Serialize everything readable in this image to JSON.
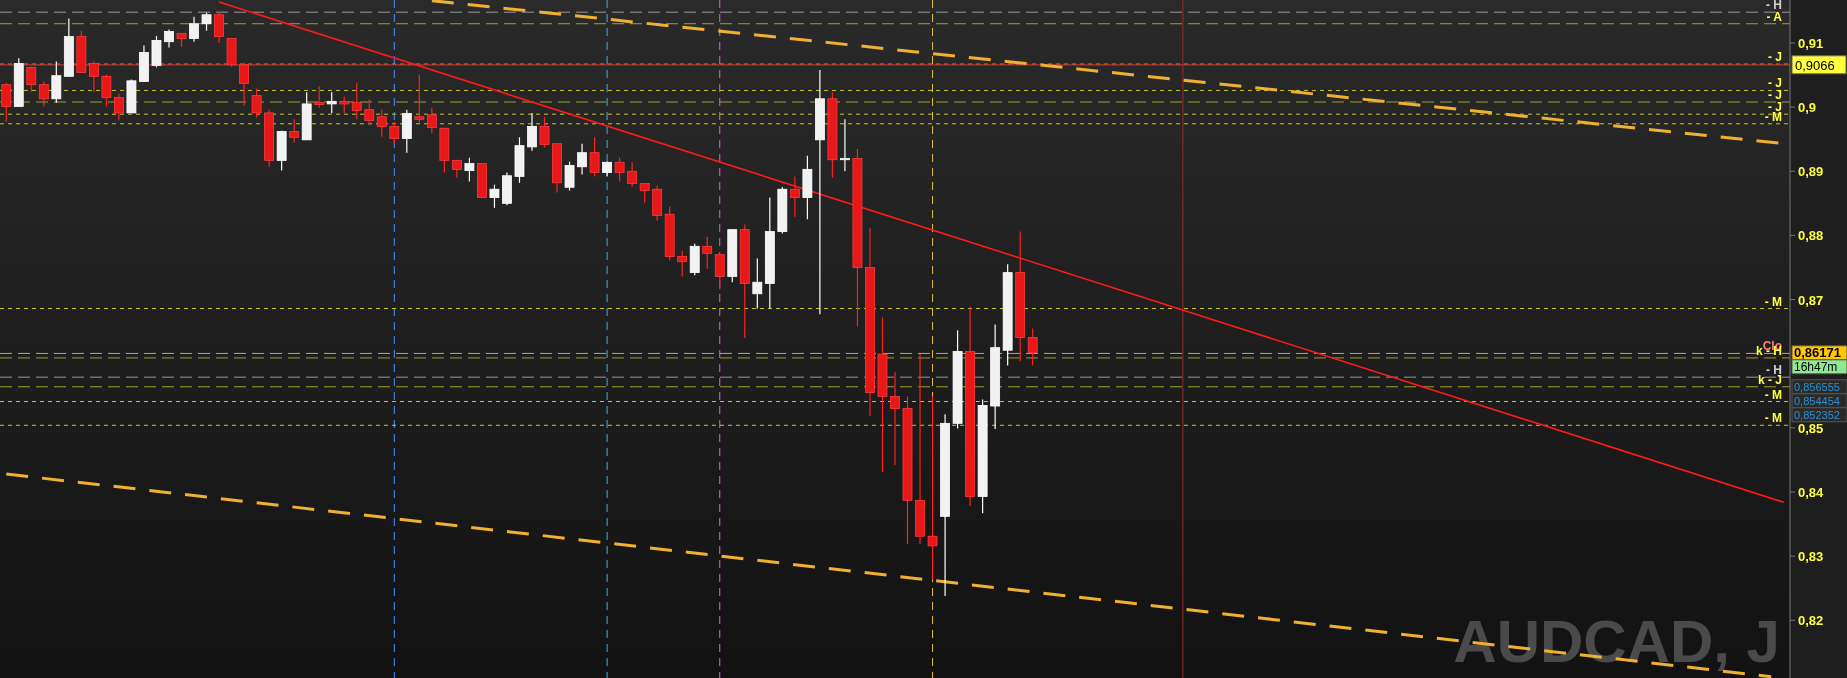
{
  "chart_data": {
    "type": "candlestick",
    "title": "AUDCAD, J",
    "categories": [
      null,
      null,
      null,
      null,
      null,
      null,
      null,
      null,
      null,
      null,
      null,
      null,
      null,
      null,
      null,
      null,
      null,
      null,
      null,
      null,
      null,
      null,
      null,
      null,
      null,
      null,
      null,
      null,
      null,
      null,
      null,
      null,
      null,
      null,
      null,
      null,
      null,
      null,
      null,
      null,
      null,
      null,
      null,
      null,
      null,
      null,
      null,
      null,
      null,
      null,
      null,
      null,
      null,
      null,
      null,
      null,
      null,
      null,
      null,
      null,
      null,
      null,
      null,
      null,
      null,
      null,
      null,
      null,
      null,
      null,
      null,
      null,
      null,
      null,
      null,
      null,
      null,
      null,
      null,
      null,
      null,
      null,
      null,
      null,
      null,
      null,
      null,
      null,
      null,
      null,
      null,
      null,
      null,
      null,
      null,
      null,
      null,
      null,
      null,
      null,
      null,
      null,
      null,
      null,
      null,
      null,
      null,
      null,
      null,
      null,
      null,
      null,
      null,
      null,
      null,
      null,
      null,
      null,
      null,
      null,
      null,
      null,
      null,
      null,
      null,
      null,
      null,
      null,
      null,
      null,
      null,
      null,
      null,
      null,
      null,
      null,
      null,
      null,
      null,
      null,
      null,
      null,
      null
    ],
    "ohlc": [
      [
        0.9035,
        0.9038,
        0.8977,
        0.9001
      ],
      [
        0.9001,
        0.9076,
        0.9001,
        0.9068
      ],
      [
        0.9062,
        0.9063,
        0.9024,
        0.9035
      ],
      [
        0.9035,
        0.904,
        0.9001,
        0.9013
      ],
      [
        0.9013,
        0.9071,
        0.9007,
        0.9049
      ],
      [
        0.9048,
        0.9138,
        0.9048,
        0.911
      ],
      [
        0.911,
        0.9119,
        0.9054,
        0.9054
      ],
      [
        0.9068,
        0.9071,
        0.9024,
        0.9048
      ],
      [
        0.9048,
        0.9051,
        0.9001,
        0.9015
      ],
      [
        0.9015,
        0.9021,
        0.8979,
        0.8991
      ],
      [
        0.8991,
        0.9043,
        0.8991,
        0.9041
      ],
      [
        0.904,
        0.9096,
        0.904,
        0.9085
      ],
      [
        0.9065,
        0.9111,
        0.9062,
        0.9104
      ],
      [
        0.9102,
        0.9121,
        0.9093,
        0.9118
      ],
      [
        0.9115,
        0.9115,
        0.9094,
        0.9107
      ],
      [
        0.9107,
        0.9141,
        0.9102,
        0.913
      ],
      [
        0.913,
        0.9147,
        0.9119,
        0.9144
      ],
      [
        0.9144,
        0.9149,
        0.91,
        0.911
      ],
      [
        0.9107,
        0.9107,
        0.9063,
        0.9066
      ],
      [
        0.9066,
        0.9069,
        0.9002,
        0.9037
      ],
      [
        0.9018,
        0.9029,
        0.8984,
        0.8991
      ],
      [
        0.8991,
        0.8996,
        0.8907,
        0.8917
      ],
      [
        0.8917,
        0.8963,
        0.8901,
        0.8962
      ],
      [
        0.8962,
        0.8981,
        0.8945,
        0.8953
      ],
      [
        0.8949,
        0.9023,
        0.8949,
        0.9005
      ],
      [
        0.9007,
        0.9032,
        0.8999,
        0.9004
      ],
      [
        0.9005,
        0.9023,
        0.8991,
        0.9009
      ],
      [
        0.9009,
        0.9016,
        0.8991,
        0.9005
      ],
      [
        0.9007,
        0.9038,
        0.8981,
        0.8995
      ],
      [
        0.8996,
        0.9012,
        0.8973,
        0.8979
      ],
      [
        0.8985,
        0.8996,
        0.8954,
        0.897
      ],
      [
        0.897,
        0.8977,
        0.8942,
        0.8951
      ],
      [
        0.8951,
        0.8996,
        0.8929,
        0.899
      ],
      [
        0.8985,
        0.9051,
        0.8976,
        0.8981
      ],
      [
        0.8988,
        0.8999,
        0.8959,
        0.8968
      ],
      [
        0.8967,
        0.8968,
        0.8898,
        0.8917
      ],
      [
        0.8917,
        0.8918,
        0.889,
        0.8903
      ],
      [
        0.8901,
        0.8921,
        0.8884,
        0.8912
      ],
      [
        0.8912,
        0.8912,
        0.8859,
        0.8859
      ],
      [
        0.8859,
        0.8879,
        0.8843,
        0.8872
      ],
      [
        0.885,
        0.8898,
        0.8847,
        0.8893
      ],
      [
        0.8892,
        0.8953,
        0.8882,
        0.894
      ],
      [
        0.8938,
        0.8991,
        0.8932,
        0.897
      ],
      [
        0.897,
        0.8985,
        0.8937,
        0.8942
      ],
      [
        0.8943,
        0.8943,
        0.8867,
        0.8882
      ],
      [
        0.8875,
        0.8915,
        0.887,
        0.8909
      ],
      [
        0.8907,
        0.8943,
        0.8895,
        0.8929
      ],
      [
        0.8929,
        0.8953,
        0.8892,
        0.8898
      ],
      [
        0.8898,
        0.8915,
        0.8892,
        0.8914
      ],
      [
        0.8914,
        0.8921,
        0.8884,
        0.8898
      ],
      [
        0.89,
        0.8914,
        0.8876,
        0.8881
      ],
      [
        0.8881,
        0.8881,
        0.8851,
        0.887
      ],
      [
        0.8872,
        0.8878,
        0.8823,
        0.8831
      ],
      [
        0.8833,
        0.8845,
        0.8761,
        0.8767
      ],
      [
        0.8767,
        0.8776,
        0.8736,
        0.8759
      ],
      [
        0.8742,
        0.8787,
        0.8738,
        0.8783
      ],
      [
        0.8783,
        0.8798,
        0.8748,
        0.8772
      ],
      [
        0.877,
        0.877,
        0.8716,
        0.8736
      ],
      [
        0.8736,
        0.8809,
        0.8727,
        0.8809
      ],
      [
        0.8809,
        0.8817,
        0.864,
        0.8725
      ],
      [
        0.8709,
        0.8764,
        0.8686,
        0.8727
      ],
      [
        0.8725,
        0.8859,
        0.8686,
        0.8806
      ],
      [
        0.8806,
        0.8875,
        0.8803,
        0.8872
      ],
      [
        0.8872,
        0.8892,
        0.8829,
        0.8859
      ],
      [
        0.8859,
        0.8924,
        0.8825,
        0.8903
      ],
      [
        0.8949,
        0.9058,
        0.8677,
        0.9013
      ],
      [
        0.9013,
        0.9023,
        0.889,
        0.8918
      ],
      [
        0.8918,
        0.8981,
        0.89,
        0.892
      ],
      [
        0.892,
        0.8935,
        0.8658,
        0.875
      ],
      [
        0.875,
        0.8811,
        0.8518,
        0.8555
      ],
      [
        0.8615,
        0.8672,
        0.8431,
        0.8549
      ],
      [
        0.8549,
        0.8587,
        0.8442,
        0.853
      ],
      [
        0.853,
        0.8549,
        0.8319,
        0.8387
      ],
      [
        0.8387,
        0.8615,
        0.8319,
        0.8331
      ],
      [
        0.8331,
        0.8549,
        0.8264,
        0.8316
      ],
      [
        0.8362,
        0.8521,
        0.8238,
        0.8507
      ],
      [
        0.8507,
        0.8652,
        0.8499,
        0.8619
      ],
      [
        0.8619,
        0.8689,
        0.8378,
        0.8393
      ],
      [
        0.8393,
        0.8544,
        0.8367,
        0.8535
      ],
      [
        0.8534,
        0.8661,
        0.8498,
        0.8625
      ],
      [
        0.8621,
        0.8755,
        0.8597,
        0.8742
      ],
      [
        0.8742,
        0.8806,
        0.8604,
        0.8641
      ],
      [
        0.8641,
        0.8655,
        0.8597,
        0.8617
      ],
      null,
      null,
      null,
      null,
      null,
      null,
      null,
      null,
      null,
      null,
      null,
      null,
      null,
      null,
      null,
      null,
      null,
      null,
      null,
      null,
      null,
      null,
      null,
      null,
      null,
      null,
      null,
      null,
      null,
      null,
      null,
      null,
      null,
      null,
      null,
      null,
      null,
      null,
      null,
      null,
      null,
      null,
      null,
      null,
      null,
      null,
      null,
      null,
      null,
      null,
      null,
      null,
      null,
      null,
      null,
      null,
      null,
      null,
      null,
      null
    ],
    "ylim": [
      0.811,
      0.9167
    ],
    "yticks": [
      {
        "value": 0.82,
        "label": "0,82"
      },
      {
        "value": 0.83,
        "label": "0,83"
      },
      {
        "value": 0.84,
        "label": "0,84"
      },
      {
        "value": 0.85,
        "label": "0,85"
      },
      {
        "value": 0.87,
        "label": "0,87"
      },
      {
        "value": 0.88,
        "label": "0,88"
      },
      {
        "value": 0.89,
        "label": "0,89"
      },
      {
        "value": 0.9,
        "label": "0,9"
      },
      {
        "value": 0.91,
        "label": "0,91"
      }
    ],
    "series": [
      {
        "type": "line",
        "values": [
          null,
          null,
          null,
          null,
          null,
          null,
          null,
          null,
          null,
          null,
          null,
          null,
          null,
          null,
          null,
          null,
          null,
          0.9164,
          null,
          null,
          null,
          null,
          null,
          null,
          null,
          null,
          null,
          null,
          null,
          null,
          null,
          null,
          null,
          null,
          null,
          null,
          null,
          null,
          null,
          null,
          null,
          null,
          null,
          null,
          null,
          null,
          null,
          null,
          null,
          null,
          null,
          null,
          null,
          null,
          null,
          null,
          null,
          null,
          null,
          null,
          null,
          null,
          null,
          null,
          null,
          null,
          null,
          null,
          null,
          null,
          null,
          null,
          null,
          null,
          null,
          null,
          null,
          null,
          null,
          null,
          null,
          null,
          null,
          null,
          null,
          null,
          null,
          null,
          null,
          null,
          null,
          null,
          null,
          null,
          null,
          null,
          null,
          null,
          null,
          null,
          null,
          null,
          null,
          null,
          null,
          null,
          null,
          null,
          null,
          null,
          null,
          null,
          null,
          null,
          null,
          null,
          null,
          null,
          null,
          null,
          null,
          null,
          null,
          null,
          null,
          null,
          null,
          null,
          null,
          null,
          null,
          null,
          null,
          null,
          null,
          null,
          null,
          null,
          null,
          null,
          null,
          null,
          0.8384
        ],
        "color": "#ff1a1a",
        "line_style": "solid"
      },
      {
        "type": "line",
        "values": [
          null,
          null,
          null,
          null,
          null,
          null,
          null,
          null,
          null,
          null,
          null,
          null,
          null,
          null,
          null,
          null,
          null,
          null,
          null,
          null,
          null,
          null,
          null,
          null,
          null,
          null,
          null,
          null,
          null,
          null,
          null,
          null,
          null,
          null,
          0.9166,
          null,
          null,
          null,
          null,
          null,
          null,
          null,
          null,
          null,
          null,
          null,
          null,
          null,
          null,
          null,
          null,
          null,
          null,
          null,
          null,
          null,
          null,
          null,
          null,
          null,
          null,
          null,
          null,
          null,
          null,
          null,
          null,
          null,
          null,
          null,
          null,
          null,
          null,
          null,
          null,
          null,
          null,
          null,
          null,
          null,
          null,
          null,
          null,
          null,
          null,
          null,
          null,
          null,
          null,
          null,
          null,
          null,
          null,
          null,
          null,
          null,
          null,
          null,
          null,
          null,
          null,
          null,
          null,
          null,
          null,
          null,
          null,
          null,
          null,
          null,
          null,
          null,
          null,
          null,
          null,
          null,
          null,
          null,
          null,
          null,
          null,
          null,
          null,
          null,
          null,
          null,
          null,
          null,
          null,
          null,
          null,
          null,
          null,
          null,
          null,
          null,
          null,
          null,
          null,
          null,
          null,
          null,
          0.8943
        ],
        "color": "#f0b030",
        "line_style": "dashed"
      },
      {
        "type": "line",
        "values": [
          0.8428,
          null,
          null,
          null,
          null,
          null,
          null,
          null,
          null,
          null,
          null,
          null,
          null,
          null,
          null,
          null,
          null,
          null,
          null,
          null,
          null,
          null,
          null,
          null,
          null,
          null,
          null,
          null,
          null,
          null,
          null,
          null,
          null,
          null,
          null,
          null,
          null,
          null,
          null,
          null,
          null,
          null,
          null,
          null,
          null,
          null,
          null,
          null,
          null,
          null,
          null,
          null,
          null,
          null,
          null,
          null,
          null,
          null,
          null,
          null,
          null,
          null,
          null,
          null,
          null,
          null,
          null,
          null,
          null,
          null,
          null,
          null,
          null,
          null,
          null,
          null,
          null,
          null,
          null,
          null,
          null,
          null,
          null,
          null,
          null,
          null,
          null,
          null,
          null,
          null,
          null,
          null,
          null,
          null,
          null,
          null,
          null,
          null,
          null,
          null,
          null,
          null,
          null,
          null,
          null,
          null,
          null,
          null,
          null,
          null,
          null,
          null,
          null,
          null,
          null,
          null,
          null,
          null,
          null,
          null,
          null,
          null,
          null,
          null,
          null,
          null,
          null,
          null,
          null,
          null,
          null,
          null,
          null,
          null,
          null,
          null,
          null,
          null,
          null,
          null,
          null,
          0.8112,
          null
        ],
        "color": "#f0b030",
        "line_style": "dashed"
      }
    ],
    "ref_lines": [
      {
        "axis": "y",
        "value": 0.9148,
        "label": "- H",
        "color": "#9a9a9a",
        "line_style": "dashed"
      },
      {
        "axis": "y",
        "value": 0.913,
        "label": "- A",
        "color": "#a0a020",
        "line_style": "dashed"
      },
      {
        "axis": "y",
        "value": 0.9067,
        "label": "- J",
        "color": "#c8c820",
        "line_style": "dotted"
      },
      {
        "axis": "y",
        "value": 0.9066,
        "label": "0,9066",
        "color": "#c03030",
        "line_style": "solid"
      },
      {
        "axis": "y",
        "value": 0.9026,
        "label": "- J",
        "color": "#c8c820",
        "line_style": "dotted"
      },
      {
        "axis": "y",
        "value": 0.9008,
        "label": "- J",
        "color": "#a0a020",
        "line_style": "dashed"
      },
      {
        "axis": "y",
        "value": 0.8989,
        "label": "- J",
        "color": "#c8c820",
        "line_style": "dotted"
      },
      {
        "axis": "y",
        "value": 0.8974,
        "label": "- M",
        "color": "#c8c820",
        "line_style": "dotted"
      },
      {
        "axis": "y",
        "value": 0.8686,
        "label": "- M",
        "color": "#c8c820",
        "line_style": "dotted"
      },
      {
        "axis": "y",
        "value": 0.8616,
        "label": "Clo",
        "color": "#ff8080",
        "line_style": "dashed"
      },
      {
        "axis": "y",
        "value": 0.8609,
        "label": "k - H",
        "color": "#a0a020",
        "line_style": "dashed"
      },
      {
        "axis": "y",
        "value": 0.8579,
        "label": "- H",
        "color": "#9a9a9a",
        "line_style": "dashed"
      },
      {
        "axis": "y",
        "value": 0.8564,
        "label": "k - J",
        "color": "#a0a020",
        "line_style": "dashed"
      },
      {
        "axis": "y",
        "value": 0.8541,
        "label": "- M",
        "color": "#c8c820",
        "line_style": "dotted"
      },
      {
        "axis": "y",
        "value": 0.8504,
        "label": "- M",
        "color": "#c8c820",
        "line_style": "dotted"
      }
    ],
    "annotations": [
      "0,86171",
      "16h47m",
      "0,856555",
      "0,854454",
      "0,852352"
    ]
  }
}
